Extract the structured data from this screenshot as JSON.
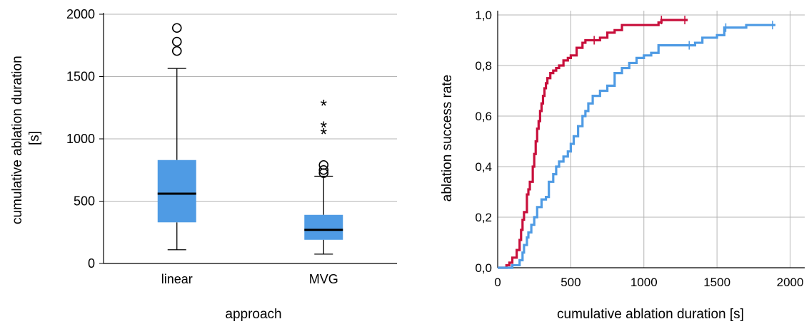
{
  "chart_data": [
    {
      "type": "box",
      "title": "",
      "xlabel": "approach",
      "ylabel_line1": "cumulative ablation duration",
      "ylabel_line2": "[s]",
      "ylim": [
        0,
        2000
      ],
      "yticks": [
        0,
        500,
        1000,
        1500,
        2000
      ],
      "ytick_labels": [
        "0",
        "500",
        "1000",
        "1500",
        "2000"
      ],
      "grid": "horizontal",
      "box_color": "#4f9be4",
      "categories": [
        "linear",
        "MVG"
      ],
      "boxes": [
        {
          "name": "linear",
          "whisker_low": 110,
          "q1": 330,
          "median": 560,
          "q3": 830,
          "whisker_high": 1565,
          "outliers": [
            1705,
            1780,
            1890
          ],
          "extremes": []
        },
        {
          "name": "MVG",
          "whisker_low": 75,
          "q1": 190,
          "median": 270,
          "q3": 390,
          "whisker_high": 700,
          "outliers": [
            725,
            750,
            790
          ],
          "extremes": [
            1060,
            1115,
            1290
          ]
        }
      ]
    },
    {
      "type": "line",
      "title": "",
      "xlabel": "cumulative ablation duration [s]",
      "ylabel": "ablation success rate",
      "xlim": [
        0,
        2100
      ],
      "ylim": [
        0,
        1
      ],
      "xticks": [
        0,
        500,
        1000,
        1500,
        2000
      ],
      "xtick_labels": [
        "0",
        "500",
        "1000",
        "1500",
        "2000"
      ],
      "yticks": [
        0,
        0.2,
        0.4,
        0.6,
        0.8,
        1.0
      ],
      "ytick_labels": [
        "0,0",
        "0,2",
        "0,4",
        "0,6",
        "0,8",
        "1,0"
      ],
      "grid": "both",
      "series": [
        {
          "color": "#c8103c",
          "x": [
            0,
            60,
            80,
            100,
            130,
            150,
            160,
            170,
            180,
            200,
            210,
            220,
            240,
            250,
            260,
            270,
            280,
            290,
            300,
            310,
            320,
            330,
            340,
            360,
            380,
            400,
            420,
            450,
            480,
            500,
            540,
            580,
            600,
            650,
            680,
            700,
            750,
            800,
            850,
            1000,
            1100,
            1120,
            1300
          ],
          "y": [
            0,
            0.01,
            0.02,
            0.04,
            0.07,
            0.11,
            0.15,
            0.19,
            0.22,
            0.29,
            0.31,
            0.34,
            0.4,
            0.45,
            0.5,
            0.55,
            0.58,
            0.62,
            0.65,
            0.68,
            0.71,
            0.73,
            0.75,
            0.77,
            0.78,
            0.79,
            0.8,
            0.82,
            0.83,
            0.84,
            0.87,
            0.89,
            0.9,
            0.9,
            0.9,
            0.91,
            0.93,
            0.94,
            0.96,
            0.96,
            0.97,
            0.98,
            0.98
          ],
          "censored": [
            660,
            1120,
            1280
          ]
        },
        {
          "color": "#4f9be4",
          "x": [
            0,
            100,
            150,
            170,
            180,
            200,
            210,
            230,
            250,
            270,
            300,
            330,
            350,
            380,
            400,
            420,
            450,
            480,
            500,
            520,
            550,
            580,
            600,
            620,
            650,
            680,
            700,
            750,
            800,
            850,
            900,
            950,
            1000,
            1050,
            1100,
            1200,
            1300,
            1350,
            1400,
            1500,
            1550,
            1700,
            1800,
            1900
          ],
          "y": [
            0,
            0.01,
            0.03,
            0.06,
            0.09,
            0.12,
            0.14,
            0.17,
            0.2,
            0.24,
            0.27,
            0.28,
            0.34,
            0.37,
            0.4,
            0.42,
            0.44,
            0.46,
            0.49,
            0.52,
            0.56,
            0.6,
            0.62,
            0.65,
            0.68,
            0.68,
            0.7,
            0.72,
            0.77,
            0.79,
            0.81,
            0.83,
            0.84,
            0.85,
            0.88,
            0.88,
            0.88,
            0.89,
            0.91,
            0.92,
            0.95,
            0.96,
            0.96,
            0.96
          ],
          "censored": [
            1310,
            1560,
            1880
          ]
        }
      ]
    }
  ]
}
